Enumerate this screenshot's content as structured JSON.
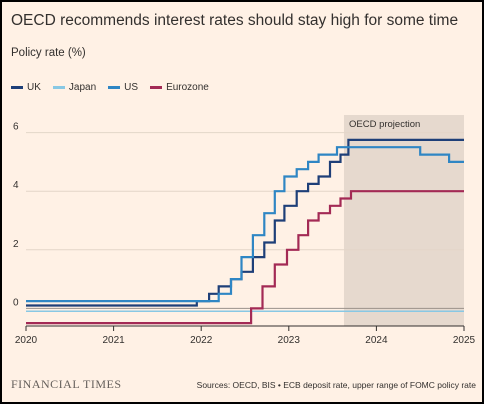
{
  "chart_data": {
    "type": "line",
    "title": "OECD recommends interest rates should stay high for some time",
    "ylabel": "Policy rate (%)",
    "xlim": [
      2020,
      2025
    ],
    "ylim": [
      -0.6,
      6.6
    ],
    "x_ticks": [
      "2020",
      "2021",
      "2022",
      "2023",
      "2024",
      "2025"
    ],
    "y_ticks": [
      0,
      2,
      4,
      6
    ],
    "grid": true,
    "legend_position": "top-left",
    "annotation": "OECD projection",
    "projection_start": 2023.63,
    "series": [
      {
        "name": "UK",
        "color": "#1e3f78",
        "points": [
          [
            2020,
            0.1
          ],
          [
            2021.95,
            0.1
          ],
          [
            2021.95,
            0.25
          ],
          [
            2022.09,
            0.25
          ],
          [
            2022.09,
            0.5
          ],
          [
            2022.2,
            0.5
          ],
          [
            2022.2,
            0.75
          ],
          [
            2022.34,
            0.75
          ],
          [
            2022.34,
            1.0
          ],
          [
            2022.46,
            1.0
          ],
          [
            2022.46,
            1.25
          ],
          [
            2022.59,
            1.25
          ],
          [
            2022.59,
            1.75
          ],
          [
            2022.72,
            1.75
          ],
          [
            2022.72,
            2.25
          ],
          [
            2022.84,
            2.25
          ],
          [
            2022.84,
            3.0
          ],
          [
            2022.95,
            3.0
          ],
          [
            2022.95,
            3.5
          ],
          [
            2023.09,
            3.5
          ],
          [
            2023.09,
            4.0
          ],
          [
            2023.22,
            4.0
          ],
          [
            2023.22,
            4.25
          ],
          [
            2023.34,
            4.25
          ],
          [
            2023.34,
            4.5
          ],
          [
            2023.47,
            4.5
          ],
          [
            2023.47,
            5.0
          ],
          [
            2023.59,
            5.0
          ],
          [
            2023.59,
            5.25
          ],
          [
            2023.68,
            5.25
          ],
          [
            2023.68,
            5.75
          ],
          [
            2025,
            5.75
          ]
        ]
      },
      {
        "name": "Japan",
        "color": "#88c8e4",
        "points": [
          [
            2020,
            -0.1
          ],
          [
            2025,
            -0.1
          ]
        ]
      },
      {
        "name": "US",
        "color": "#2f86c4",
        "points": [
          [
            2020,
            0.25
          ],
          [
            2022.2,
            0.25
          ],
          [
            2022.2,
            0.5
          ],
          [
            2022.34,
            0.5
          ],
          [
            2022.34,
            1.0
          ],
          [
            2022.46,
            1.0
          ],
          [
            2022.46,
            1.75
          ],
          [
            2022.59,
            1.75
          ],
          [
            2022.59,
            2.5
          ],
          [
            2022.72,
            2.5
          ],
          [
            2022.72,
            3.25
          ],
          [
            2022.84,
            3.25
          ],
          [
            2022.84,
            4.0
          ],
          [
            2022.95,
            4.0
          ],
          [
            2022.95,
            4.5
          ],
          [
            2023.09,
            4.5
          ],
          [
            2023.09,
            4.75
          ],
          [
            2023.22,
            4.75
          ],
          [
            2023.22,
            5.0
          ],
          [
            2023.34,
            5.0
          ],
          [
            2023.34,
            5.25
          ],
          [
            2023.55,
            5.25
          ],
          [
            2023.55,
            5.5
          ],
          [
            2024.5,
            5.5
          ],
          [
            2024.5,
            5.25
          ],
          [
            2024.83,
            5.25
          ],
          [
            2024.83,
            5.0
          ],
          [
            2025,
            5.0
          ]
        ]
      },
      {
        "name": "Eurozone",
        "color": "#a32a55",
        "points": [
          [
            2020,
            -0.5
          ],
          [
            2022.57,
            -0.5
          ],
          [
            2022.57,
            0.0
          ],
          [
            2022.7,
            0.0
          ],
          [
            2022.7,
            0.75
          ],
          [
            2022.84,
            0.75
          ],
          [
            2022.84,
            1.5
          ],
          [
            2022.98,
            1.5
          ],
          [
            2022.98,
            2.0
          ],
          [
            2023.11,
            2.0
          ],
          [
            2023.11,
            2.5
          ],
          [
            2023.22,
            2.5
          ],
          [
            2023.22,
            3.0
          ],
          [
            2023.34,
            3.0
          ],
          [
            2023.34,
            3.25
          ],
          [
            2023.47,
            3.25
          ],
          [
            2023.47,
            3.5
          ],
          [
            2023.59,
            3.5
          ],
          [
            2023.59,
            3.75
          ],
          [
            2023.71,
            3.75
          ],
          [
            2023.71,
            4.0
          ],
          [
            2025,
            4.0
          ]
        ]
      }
    ]
  },
  "footer": {
    "publisher": "FINANCIAL TIMES",
    "source": "Sources: OECD, BIS • ECB deposit rate, upper range of FOMC policy rate"
  },
  "style": {
    "background": "#fff1e5",
    "projection_fill": "#e6d9ce",
    "grid_color": "#e3d6c8",
    "axis_color": "#33302e"
  }
}
